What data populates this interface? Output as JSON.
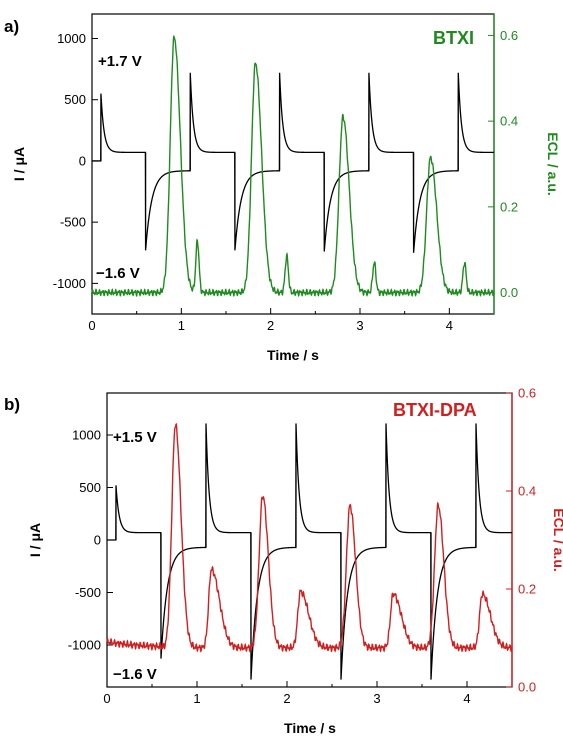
{
  "colors": {
    "black": "#000000",
    "green": "#1f8a1f",
    "red": "#d11f1f"
  },
  "chart_data": [
    {
      "panel": "a)",
      "type": "line",
      "sample": "BTXI",
      "sample_color": "#1f8a1f",
      "xlabel": "Time / s",
      "ylabel_left": "I / μA",
      "ylabel_right": "ECL / a.u.",
      "xlim": [
        0,
        4.5
      ],
      "ylim_left": [
        -1250,
        1200
      ],
      "ylim_right": [
        -0.05,
        0.65
      ],
      "xticks": [
        0,
        1,
        2,
        3,
        4
      ],
      "yticks_left": [
        -1000,
        -500,
        0,
        500,
        1000
      ],
      "yticks_right": [
        0.0,
        0.2,
        0.4,
        0.6
      ],
      "annotations": [
        "+1.7 V",
        "−1.6 V"
      ],
      "current_trace": {
        "pulse_period_s": 1.0,
        "step_times_s": [
          0.1,
          0.6,
          1.1,
          1.6,
          2.1,
          2.6,
          3.1,
          3.6,
          4.1
        ],
        "positive_step_peak_uA": [
          550,
          720,
          720,
          720,
          720
        ],
        "positive_plateau_uA": 70,
        "negative_step_peak_uA": [
          -730,
          -730,
          -740,
          -750
        ],
        "negative_plateau_uA": -80
      },
      "ecl_series": {
        "name": "BTXI",
        "baseline": 0.0,
        "main_peak_times_s": [
          0.92,
          1.83,
          2.81,
          3.79
        ],
        "main_peak_values": [
          0.595,
          0.535,
          0.41,
          0.315
        ],
        "secondary_peak_times_s": [
          1.18,
          2.18,
          3.16,
          4.17
        ],
        "secondary_peak_values": [
          0.12,
          0.085,
          0.07,
          0.07
        ]
      }
    },
    {
      "panel": "b)",
      "type": "line",
      "sample": "BTXI-DPA",
      "sample_color": "#d11f1f",
      "xlabel": "Time / s",
      "ylabel_left": "I / μA",
      "ylabel_right": "ECL / a.u.",
      "xlim": [
        0,
        4.5
      ],
      "ylim_left": [
        -1400,
        1400
      ],
      "ylim_right": [
        0.0,
        0.6
      ],
      "xticks": [
        0,
        1,
        2,
        3,
        4
      ],
      "yticks_left": [
        -1000,
        -500,
        0,
        500,
        1000
      ],
      "yticks_right": [
        0.0,
        0.2,
        0.4,
        0.6
      ],
      "annotations": [
        "+1.5 V",
        "−1.6 V"
      ],
      "current_trace": {
        "pulse_period_s": 1.0,
        "step_times_s": [
          0.1,
          0.6,
          1.1,
          1.6,
          2.1,
          2.6,
          3.1,
          3.6,
          4.1
        ],
        "positive_step_peak_uA": [
          520,
          1110,
          1110,
          1110,
          1110
        ],
        "positive_plateau_uA": 70,
        "negative_step_peak_uA": [
          -1130,
          -1330,
          -1330,
          -1330
        ],
        "negative_plateau_uA": -70
      },
      "ecl_series": {
        "name": "BTXI-DPA",
        "baseline": 0.08,
        "main_peak_times_s": [
          0.76,
          1.73,
          2.7,
          3.68
        ],
        "main_peak_values": [
          0.535,
          0.39,
          0.37,
          0.37
        ],
        "secondary_peak_times_s": [
          1.16,
          2.15,
          3.18,
          4.17
        ],
        "secondary_peak_values": [
          0.24,
          0.195,
          0.19,
          0.19
        ]
      }
    }
  ]
}
